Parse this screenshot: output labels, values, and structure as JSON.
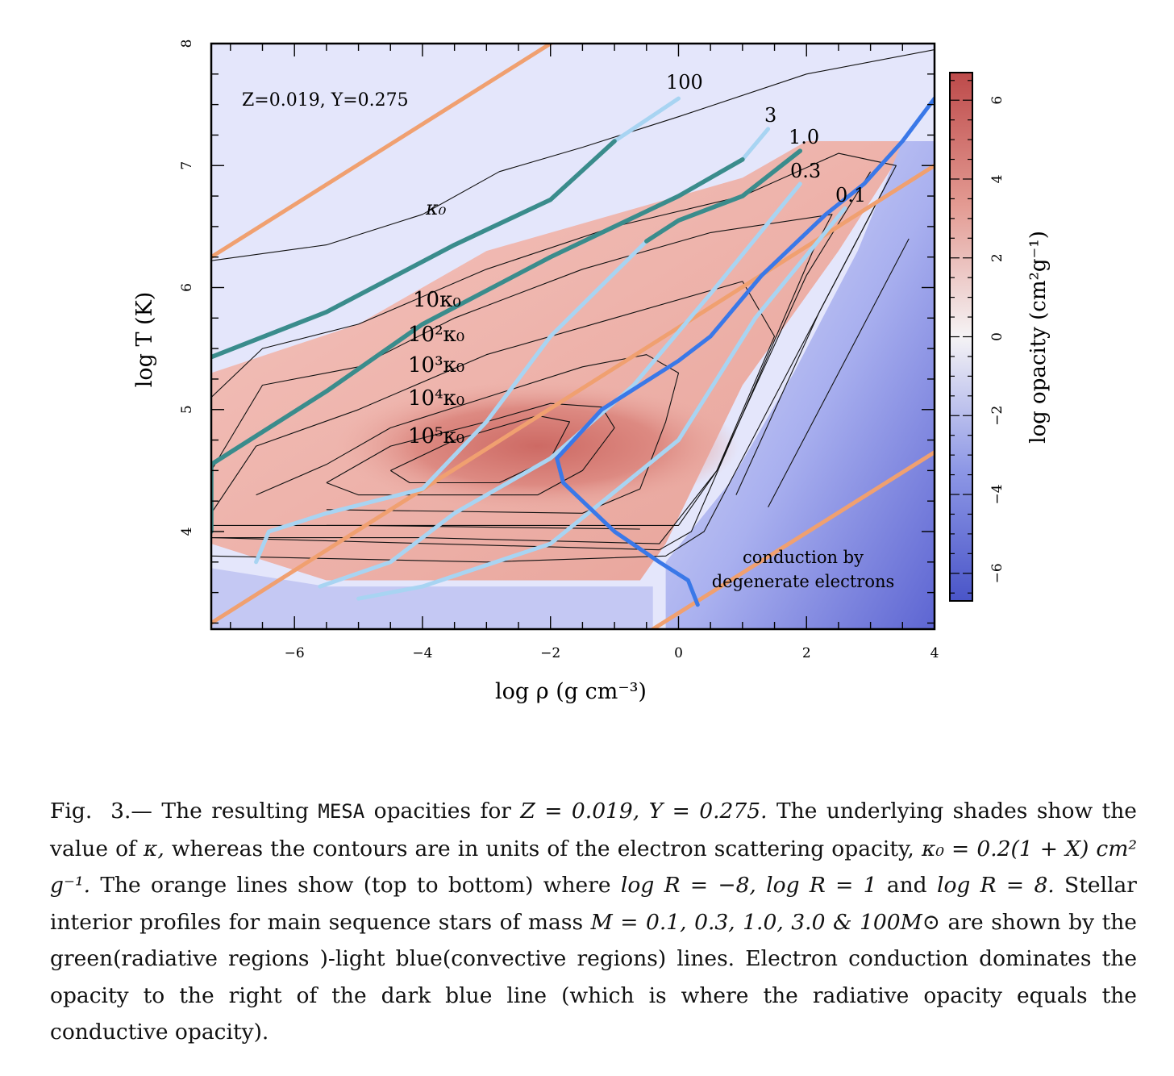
{
  "figure": {
    "annotation": "Z=0.019, Y=0.275",
    "region_label_line1": "conduction by",
    "region_label_line2": "degenerate electrons",
    "contour_labels": [
      "κ₀",
      "10κ₀",
      "10²κ₀",
      "10³κ₀",
      "10⁴κ₀",
      "10⁵κ₀"
    ],
    "profile_labels": [
      "100",
      "3",
      "1.0",
      "0.3",
      "0.1"
    ],
    "colors": {
      "orange": "#f0a070",
      "radiative_green": "#3a8c8c",
      "convective_light_blue": "#a8d4f2",
      "conduction_dark_blue": "#3a78e8",
      "high_opacity_red": "#cc5f5f",
      "low_opacity_blue": "#5a62cc"
    }
  },
  "chart_data": {
    "type": "heatmap",
    "xlabel": "log ρ (g cm⁻³)",
    "ylabel": "log T (K)",
    "xlim": [
      -7.3,
      4
    ],
    "ylim": [
      3.2,
      8
    ],
    "x_ticks": [
      "−6",
      "−4",
      "−2",
      "0",
      "2",
      "4"
    ],
    "x_tick_values": [
      -6,
      -4,
      -2,
      0,
      2,
      4
    ],
    "y_ticks": [
      "4",
      "5",
      "6",
      "7",
      "8"
    ],
    "y_tick_values": [
      4,
      5,
      6,
      7,
      8
    ],
    "colorbar": {
      "label": "log opacity (cm²g⁻¹)",
      "range": [
        -6.7,
        6.7
      ],
      "ticks": [
        "−6",
        "−4",
        "−2",
        "0",
        "2",
        "4",
        "6"
      ],
      "tick_values": [
        -6,
        -4,
        -2,
        0,
        2,
        4,
        6
      ]
    },
    "orange_lines": [
      {
        "x": [
          -7.3,
          -2.0
        ],
        "y": [
          6.25,
          8.0
        ]
      },
      {
        "x": [
          -7.3,
          4.0
        ],
        "y": [
          3.25,
          7.0
        ]
      },
      {
        "x": [
          -0.4,
          4.0
        ],
        "y": [
          3.2,
          4.65
        ]
      }
    ],
    "profiles": [
      {
        "label": "100",
        "green": [
          [
            -7.3,
            5.43
          ],
          [
            -5.5,
            5.8
          ],
          [
            -3.5,
            6.35
          ],
          [
            -2.0,
            6.72
          ],
          [
            -1.0,
            7.2
          ]
        ],
        "lightblue": [
          [
            -1.0,
            7.2
          ],
          [
            0.0,
            7.55
          ]
        ]
      },
      {
        "label": "3",
        "green": [
          [
            -7.3,
            4.0
          ],
          [
            -7.3,
            4.55
          ],
          [
            -5.5,
            5.15
          ],
          [
            -4.0,
            5.7
          ],
          [
            -2.0,
            6.25
          ],
          [
            0.0,
            6.75
          ],
          [
            1.0,
            7.05
          ]
        ],
        "lightblue": [
          [
            1.0,
            7.05
          ],
          [
            1.4,
            7.3
          ]
        ]
      },
      {
        "label": "1.0",
        "green": [
          [
            -0.5,
            6.38
          ],
          [
            0.0,
            6.55
          ],
          [
            1.0,
            6.75
          ],
          [
            1.9,
            7.12
          ]
        ],
        "lightblue": [
          [
            -6.6,
            3.75
          ],
          [
            -6.4,
            4.0
          ],
          [
            -5.5,
            4.15
          ],
          [
            -4.0,
            4.35
          ],
          [
            -3.0,
            4.9
          ],
          [
            -2.0,
            5.6
          ],
          [
            -0.5,
            6.38
          ]
        ]
      },
      {
        "label": "0.3",
        "lightblue": [
          [
            -5.6,
            3.55
          ],
          [
            -4.5,
            3.75
          ],
          [
            -3.5,
            4.15
          ],
          [
            -2.0,
            4.6
          ],
          [
            -0.7,
            5.2
          ],
          [
            0.5,
            5.95
          ],
          [
            1.9,
            6.85
          ]
        ]
      },
      {
        "label": "0.1",
        "lightblue": [
          [
            -5.0,
            3.45
          ],
          [
            -4.0,
            3.55
          ],
          [
            -2.0,
            3.9
          ],
          [
            0.0,
            4.75
          ],
          [
            1.2,
            5.75
          ],
          [
            2.6,
            6.65
          ]
        ]
      }
    ],
    "conduction_boundary": [
      [
        0.3,
        3.4
      ],
      [
        0.15,
        3.6
      ],
      [
        -0.3,
        3.75
      ],
      [
        -1.0,
        4.0
      ],
      [
        -1.8,
        4.4
      ],
      [
        -1.9,
        4.6
      ],
      [
        -1.2,
        5.0
      ],
      [
        0.0,
        5.4
      ],
      [
        0.5,
        5.6
      ],
      [
        1.3,
        6.1
      ],
      [
        2.3,
        6.6
      ],
      [
        2.9,
        6.85
      ],
      [
        3.5,
        7.2
      ],
      [
        4.0,
        7.55
      ]
    ]
  },
  "caption": {
    "fig_label": "Fig.",
    "fig_num": "3.—",
    "t1": "The resulting",
    "code": "MESA",
    "t2": "opacities for",
    "eq1": "Z = 0.019, Y = 0.275.",
    "t3": "The underlying shades show the value of",
    "kappa": "κ,",
    "t4": "whereas the contours are in units of the electron scattering opacity,",
    "eq2": "κ₀ = 0.2(1 + X) cm² g⁻¹.",
    "t5": "The orange lines show (top to bottom) where",
    "eq3": "log R = −8, log R = 1",
    "t6": "and",
    "eq4": "log R = 8.",
    "t7": "Stellar interior profiles for main sequence stars of mass",
    "eq5": "M = 0.1, 0.3, 1.0, 3.0 & 100M⊙",
    "t8": "are shown by the green(radiative regions )-light blue(convective regions) lines. Electron conduction dominates the opacity to the right of the dark blue line (which is where the radiative opacity equals the conductive opacity)."
  }
}
